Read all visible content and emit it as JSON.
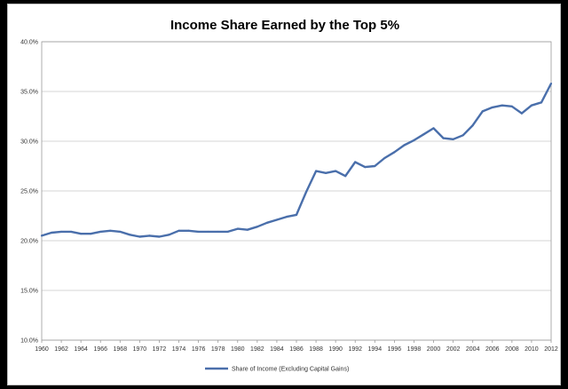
{
  "chart_data": {
    "type": "line",
    "title": "Income Share Earned by the Top 5%",
    "xlabel": "",
    "ylabel": "",
    "ylim": [
      10,
      40
    ],
    "yticks": [
      "10.0%",
      "15.0%",
      "20.0%",
      "25.0%",
      "30.0%",
      "35.0%",
      "40.0%"
    ],
    "ytick_values": [
      10,
      15,
      20,
      25,
      30,
      35,
      40
    ],
    "xlim": [
      1960,
      2012
    ],
    "xticks": [
      "1960",
      "1962",
      "1964",
      "1966",
      "1968",
      "1970",
      "1972",
      "1974",
      "1976",
      "1978",
      "1980",
      "1982",
      "1984",
      "1986",
      "1988",
      "1990",
      "1992",
      "1994",
      "1996",
      "1998",
      "2000",
      "2002",
      "2004",
      "2006",
      "2008",
      "2010",
      "2012"
    ],
    "xtick_values": [
      1960,
      1962,
      1964,
      1966,
      1968,
      1970,
      1972,
      1974,
      1976,
      1978,
      1980,
      1982,
      1984,
      1986,
      1988,
      1990,
      1992,
      1994,
      1996,
      1998,
      2000,
      2002,
      2004,
      2006,
      2008,
      2010,
      2012
    ],
    "grid": true,
    "legend_position": "bottom",
    "series": [
      {
        "name": "Share of Income (Excluding Capital Gains)",
        "color": "#4a6fab",
        "x": [
          1960,
          1961,
          1962,
          1963,
          1964,
          1965,
          1966,
          1967,
          1968,
          1969,
          1970,
          1971,
          1972,
          1973,
          1974,
          1975,
          1976,
          1977,
          1978,
          1979,
          1980,
          1981,
          1982,
          1983,
          1984,
          1985,
          1986,
          1987,
          1988,
          1989,
          1990,
          1991,
          1992,
          1993,
          1994,
          1995,
          1996,
          1997,
          1998,
          1999,
          2000,
          2001,
          2002,
          2003,
          2004,
          2005,
          2006,
          2007,
          2008,
          2009,
          2010,
          2011,
          2012
        ],
        "values": [
          20.5,
          20.8,
          20.9,
          20.9,
          20.7,
          20.7,
          20.9,
          21.0,
          20.9,
          20.6,
          20.4,
          20.5,
          20.4,
          20.6,
          21.0,
          21.0,
          20.9,
          20.9,
          20.9,
          20.9,
          21.2,
          21.1,
          21.4,
          21.8,
          22.1,
          22.4,
          22.6,
          24.9,
          27.0,
          26.8,
          27.0,
          26.5,
          27.9,
          27.4,
          27.5,
          28.3,
          28.9,
          29.6,
          30.1,
          30.7,
          31.3,
          30.3,
          30.2,
          30.6,
          31.6,
          33.0,
          33.4,
          33.6,
          33.5,
          32.8,
          33.6,
          33.9,
          35.8
        ]
      }
    ]
  }
}
